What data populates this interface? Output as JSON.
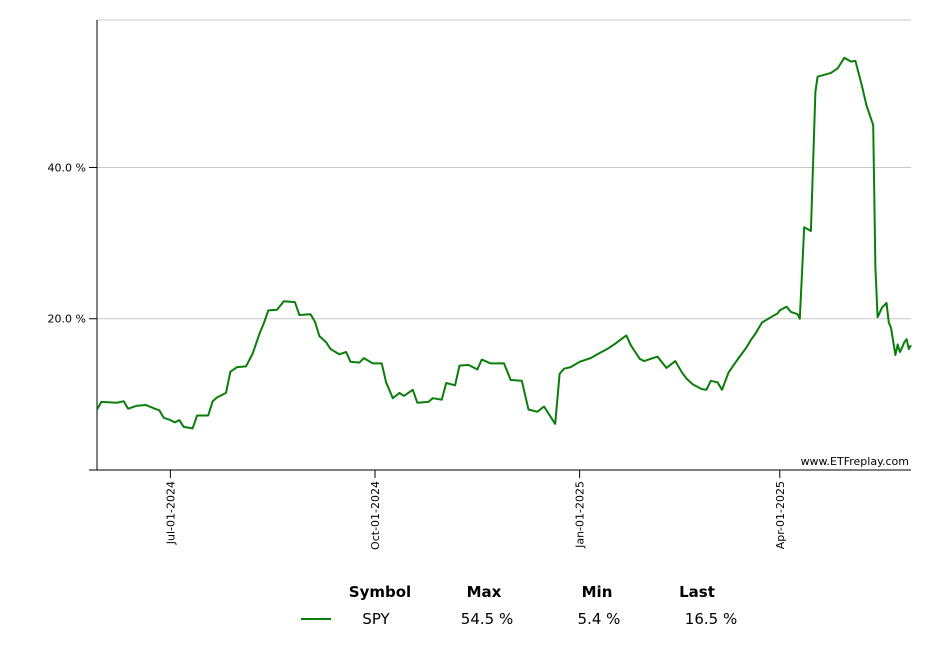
{
  "watermark": "www.ETFreplay.com",
  "legend": {
    "headers": {
      "symbol": "Symbol",
      "max": "Max",
      "min": "Min",
      "last": "Last"
    },
    "rows": [
      {
        "symbol": "SPY",
        "max": "54.5 %",
        "min": "5.4 %",
        "last": "16.5 %",
        "color": "#0a7d0a"
      }
    ]
  },
  "chart_data": {
    "type": "line",
    "title": "",
    "xlabel": "",
    "ylabel": "",
    "ylim": [
      0,
      59.5
    ],
    "xlim": [
      "2024-05-29",
      "2025-05-30"
    ],
    "grid": true,
    "y_ticks": [
      {
        "value": 20,
        "label": "20.0 %"
      },
      {
        "value": 40,
        "label": "40.0 %"
      }
    ],
    "x_ticks": [
      {
        "date": "2024-07-01",
        "label": "Jul-01-2024"
      },
      {
        "date": "2024-10-01",
        "label": "Oct-01-2024"
      },
      {
        "date": "2025-01-01",
        "label": "Jan-01-2025"
      },
      {
        "date": "2025-04-01",
        "label": "Apr-01-2025"
      }
    ],
    "series": [
      {
        "name": "SPY",
        "color": "#0a7d0a",
        "points": [
          [
            "2024-05-29",
            8.0
          ],
          [
            "2024-05-31",
            9.0
          ],
          [
            "2024-06-07",
            8.9
          ],
          [
            "2024-06-10",
            9.1
          ],
          [
            "2024-06-12",
            8.1
          ],
          [
            "2024-06-16",
            8.5
          ],
          [
            "2024-06-20",
            8.6
          ],
          [
            "2024-06-24",
            8.1
          ],
          [
            "2024-06-26",
            7.9
          ],
          [
            "2024-06-28",
            6.9
          ],
          [
            "2024-07-01",
            6.6
          ],
          [
            "2024-07-03",
            6.3
          ],
          [
            "2024-07-05",
            6.6
          ],
          [
            "2024-07-07",
            5.7
          ],
          [
            "2024-07-11",
            5.5
          ],
          [
            "2024-07-13",
            7.2
          ],
          [
            "2024-07-18",
            7.2
          ],
          [
            "2024-07-20",
            9.1
          ],
          [
            "2024-07-22",
            9.6
          ],
          [
            "2024-07-26",
            10.2
          ],
          [
            "2024-07-28",
            13.0
          ],
          [
            "2024-07-31",
            13.6
          ],
          [
            "2024-08-04",
            13.7
          ],
          [
            "2024-08-07",
            15.4
          ],
          [
            "2024-08-10",
            18.0
          ],
          [
            "2024-08-12",
            19.4
          ],
          [
            "2024-08-14",
            21.1
          ],
          [
            "2024-08-18",
            21.2
          ],
          [
            "2024-08-21",
            22.3
          ],
          [
            "2024-08-26",
            22.2
          ],
          [
            "2024-08-28",
            20.5
          ],
          [
            "2024-09-02",
            20.6
          ],
          [
            "2024-09-04",
            19.6
          ],
          [
            "2024-09-06",
            17.7
          ],
          [
            "2024-09-09",
            16.9
          ],
          [
            "2024-09-11",
            16.0
          ],
          [
            "2024-09-15",
            15.3
          ],
          [
            "2024-09-18",
            15.6
          ],
          [
            "2024-09-20",
            14.3
          ],
          [
            "2024-09-24",
            14.2
          ],
          [
            "2024-09-26",
            14.8
          ],
          [
            "2024-09-30",
            14.1
          ],
          [
            "2024-10-04",
            14.1
          ],
          [
            "2024-10-06",
            11.6
          ],
          [
            "2024-10-09",
            9.5
          ],
          [
            "2024-10-12",
            10.2
          ],
          [
            "2024-10-14",
            9.8
          ],
          [
            "2024-10-18",
            10.6
          ],
          [
            "2024-10-20",
            8.9
          ],
          [
            "2024-10-25",
            9.0
          ],
          [
            "2024-10-27",
            9.5
          ],
          [
            "2024-10-31",
            9.3
          ],
          [
            "2024-11-02",
            11.5
          ],
          [
            "2024-11-06",
            11.2
          ],
          [
            "2024-11-08",
            13.8
          ],
          [
            "2024-11-12",
            13.9
          ],
          [
            "2024-11-16",
            13.3
          ],
          [
            "2024-11-18",
            14.6
          ],
          [
            "2024-11-22",
            14.1
          ],
          [
            "2024-11-28",
            14.1
          ],
          [
            "2024-12-01",
            11.9
          ],
          [
            "2024-12-06",
            11.8
          ],
          [
            "2024-12-09",
            8.0
          ],
          [
            "2024-12-13",
            7.7
          ],
          [
            "2024-12-16",
            8.4
          ],
          [
            "2024-12-21",
            6.1
          ],
          [
            "2024-12-23",
            12.7
          ],
          [
            "2024-12-25",
            13.4
          ],
          [
            "2024-12-28",
            13.6
          ],
          [
            "2025-01-01",
            14.3
          ],
          [
            "2025-01-06",
            14.8
          ],
          [
            "2025-01-09",
            15.3
          ],
          [
            "2025-01-14",
            16.1
          ],
          [
            "2025-01-17",
            16.7
          ],
          [
            "2025-01-22",
            17.8
          ],
          [
            "2025-01-24",
            16.5
          ],
          [
            "2025-01-28",
            14.7
          ],
          [
            "2025-01-30",
            14.4
          ],
          [
            "2025-02-05",
            15.0
          ],
          [
            "2025-02-09",
            13.5
          ],
          [
            "2025-02-13",
            14.4
          ],
          [
            "2025-02-16",
            12.9
          ],
          [
            "2025-02-18",
            12.1
          ],
          [
            "2025-02-21",
            11.3
          ],
          [
            "2025-02-25",
            10.7
          ],
          [
            "2025-02-27",
            10.6
          ],
          [
            "2025-03-01",
            11.8
          ],
          [
            "2025-03-04",
            11.6
          ],
          [
            "2025-03-06",
            10.6
          ],
          [
            "2025-03-09",
            12.9
          ],
          [
            "2025-03-13",
            14.6
          ],
          [
            "2025-03-17",
            16.2
          ],
          [
            "2025-03-19",
            17.2
          ],
          [
            "2025-03-21",
            18.0
          ],
          [
            "2025-03-24",
            19.5
          ],
          [
            "2025-03-28",
            20.2
          ],
          [
            "2025-03-31",
            20.7
          ],
          [
            "2025-04-01",
            21.1
          ],
          [
            "2025-04-04",
            21.6
          ],
          [
            "2025-04-06",
            20.9
          ],
          [
            "2025-04-09",
            20.6
          ],
          [
            "2025-04-10",
            20.0
          ],
          [
            "2025-04-12",
            32.1
          ],
          [
            "2025-04-15",
            31.6
          ],
          [
            "2025-04-17",
            50.0
          ],
          [
            "2025-04-18",
            52.0
          ],
          [
            "2025-04-24",
            52.5
          ],
          [
            "2025-04-27",
            53.1
          ],
          [
            "2025-04-30",
            54.5
          ],
          [
            "2025-05-03",
            54.0
          ],
          [
            "2025-05-05",
            54.1
          ],
          [
            "2025-05-08",
            50.7
          ],
          [
            "2025-05-10",
            48.2
          ],
          [
            "2025-05-13",
            45.6
          ],
          [
            "2025-05-14",
            26.8
          ],
          [
            "2025-05-15",
            20.2
          ],
          [
            "2025-05-17",
            21.5
          ],
          [
            "2025-05-19",
            22.1
          ],
          [
            "2025-05-20",
            19.5
          ],
          [
            "2025-05-21",
            18.8
          ],
          [
            "2025-05-23",
            15.2
          ],
          [
            "2025-05-24",
            16.6
          ],
          [
            "2025-05-25",
            15.6
          ],
          [
            "2025-05-26",
            16.2
          ],
          [
            "2025-05-27",
            16.9
          ],
          [
            "2025-05-28",
            17.3
          ],
          [
            "2025-05-29",
            16.0
          ],
          [
            "2025-05-30",
            16.5
          ]
        ]
      }
    ]
  }
}
